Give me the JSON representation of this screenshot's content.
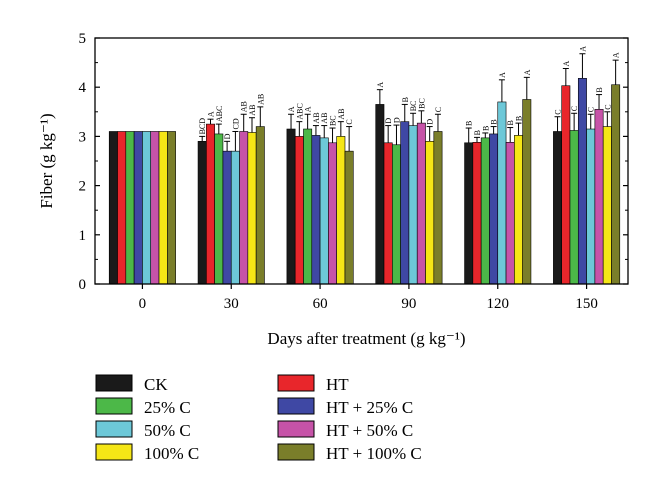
{
  "chart_data": {
    "type": "bar",
    "xlabel": "Days after treatment (g kg⁻¹)",
    "ylabel": "Fiber (g kg⁻¹)",
    "ylim": [
      0,
      5
    ],
    "yticks": [
      "0",
      "1",
      "2",
      "3",
      "4",
      "5"
    ],
    "categories": [
      "0",
      "30",
      "60",
      "90",
      "120",
      "150"
    ],
    "grid": false,
    "legend_position": "bottom",
    "series": [
      {
        "name": "CK",
        "color": "#1a1a1a",
        "values": [
          3.1,
          2.9,
          3.15,
          3.65,
          2.87,
          3.1
        ],
        "errors": [
          0,
          0.1,
          0.3,
          0.3,
          0.3,
          0.3
        ],
        "labels": [
          "",
          "BCD",
          "A",
          "A",
          "B",
          "C"
        ]
      },
      {
        "name": "HT",
        "color": "#e8262b",
        "values": [
          3.1,
          3.25,
          3.0,
          2.87,
          2.88,
          4.03
        ],
        "errors": [
          0,
          0.1,
          0.3,
          0.35,
          0.1,
          0.35
        ],
        "labels": [
          "",
          "A",
          "ABC",
          "D",
          "B",
          "A"
        ]
      },
      {
        "name": "25% C",
        "color": "#4cb848",
        "values": [
          3.1,
          3.05,
          3.15,
          2.83,
          2.97,
          3.12
        ],
        "errors": [
          0,
          0.2,
          0.3,
          0.4,
          0.1,
          0.35
        ],
        "labels": [
          "",
          "ABC",
          "A",
          "D",
          "B",
          "C"
        ]
      },
      {
        "name": "HT + 25% C",
        "color": "#3f48a4",
        "values": [
          3.1,
          2.7,
          3.02,
          3.3,
          3.05,
          4.18
        ],
        "errors": [
          0,
          0.2,
          0.2,
          0.35,
          0.15,
          0.5
        ],
        "labels": [
          "",
          "D",
          "AB",
          "B",
          "B",
          "A"
        ]
      },
      {
        "name": "50% C",
        "color": "#6dc8d8",
        "values": [
          3.1,
          2.7,
          2.97,
          3.22,
          3.7,
          3.15
        ],
        "errors": [
          0,
          0.4,
          0.25,
          0.25,
          0.45,
          0.3
        ],
        "labels": [
          "",
          "CD",
          "AB",
          "BC",
          "A",
          "C"
        ]
      },
      {
        "name": "HT + 50% C",
        "color": "#c653a8",
        "values": [
          3.1,
          3.1,
          2.87,
          3.27,
          2.88,
          3.55
        ],
        "errors": [
          0,
          0.35,
          0.3,
          0.25,
          0.3,
          0.3
        ],
        "labels": [
          "",
          "AB",
          "BC",
          "BC",
          "B",
          "B"
        ]
      },
      {
        "name": "100% C",
        "color": "#f5e616",
        "values": [
          3.1,
          3.08,
          3.0,
          2.9,
          3.02,
          3.2
        ],
        "errors": [
          0,
          0.3,
          0.3,
          0.3,
          0.25,
          0.3
        ],
        "labels": [
          "",
          "AB",
          "AB",
          "D",
          "B",
          "C"
        ]
      },
      {
        "name": "HT + 100% C",
        "color": "#7a7e2a",
        "values": [
          3.1,
          3.2,
          2.7,
          3.1,
          3.75,
          4.05
        ],
        "errors": [
          0,
          0.4,
          0.5,
          0.35,
          0.45,
          0.5
        ],
        "labels": [
          "",
          "AB",
          "C",
          "C",
          "A",
          "A"
        ]
      }
    ],
    "legend_order": [
      0,
      1,
      2,
      3,
      4,
      5,
      6,
      7
    ]
  }
}
